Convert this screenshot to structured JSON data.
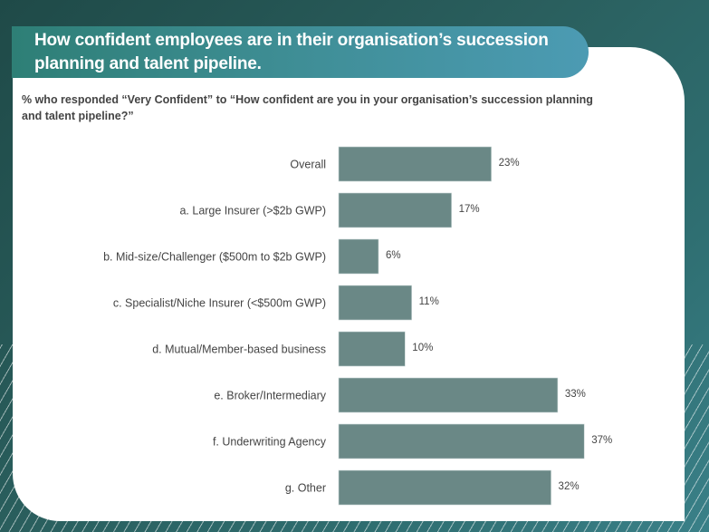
{
  "chart_data": {
    "type": "bar",
    "orientation": "horizontal",
    "title": "How confident employees are in their organisation’s succession planning and talent pipeline.",
    "subtitle": "% who responded “Very Confident” to “How confident are you in your organisation’s succession planning and talent pipeline?”",
    "categories": [
      "Overall",
      "a. Large Insurer (>$2b GWP)",
      "b. Mid-size/Challenger ($500m to $2b GWP)",
      "c. Specialist/Niche Insurer (<$500m GWP)",
      "d. Mutual/Member-based business",
      "e. Broker/Intermediary",
      "f. Underwriting Agency",
      "g. Other"
    ],
    "values": [
      23,
      17,
      6,
      11,
      10,
      33,
      37,
      32
    ],
    "value_labels": [
      "23%",
      "17%",
      "6%",
      "11%",
      "10%",
      "33%",
      "37%",
      "32%"
    ],
    "xlim": [
      0,
      40
    ],
    "grid": false,
    "colors": {
      "bar": "#6a8886",
      "label": "#444444",
      "banner_start": "#2e7f76",
      "banner_end": "#4c9bb3"
    }
  }
}
